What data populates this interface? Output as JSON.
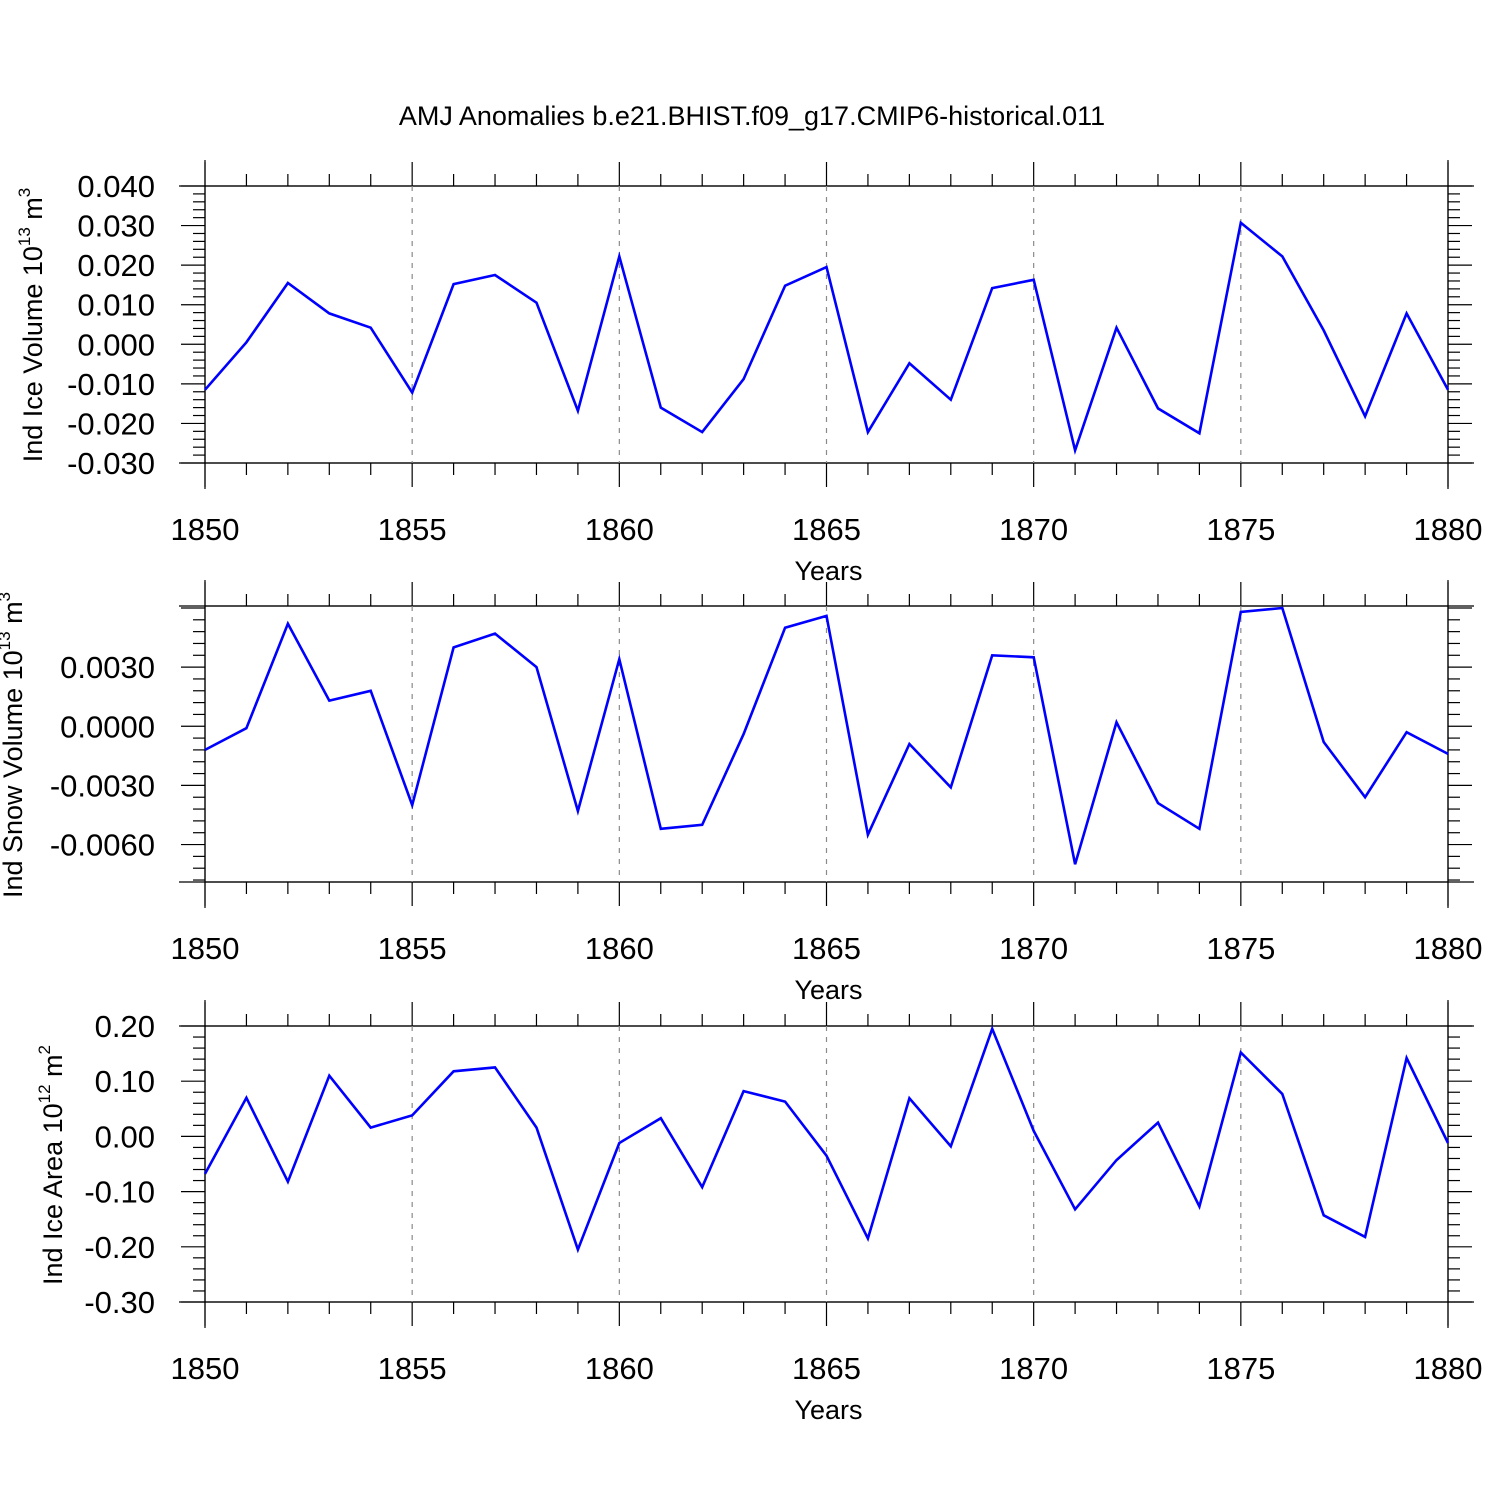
{
  "title": "AMJ Anomalies b.e21.BHIST.f09_g17.CMIP6-historical.011",
  "line_color": "#0000ff",
  "chart_data": [
    {
      "type": "line",
      "ylabel": "Ind Ice Volume 10",
      "ylabel_exp": "13",
      "ylabel_unit": " m",
      "ylabel_unit_exp": "3",
      "xlabel": "Years",
      "xlim": [
        1850,
        1880
      ],
      "ylim": [
        -0.03,
        0.04
      ],
      "xticks": [
        "1850",
        "1855",
        "1860",
        "1865",
        "1870",
        "1875",
        "1880"
      ],
      "yticks": [
        "-0.030",
        "-0.020",
        "-0.010",
        "0.000",
        "0.010",
        "0.020",
        "0.030",
        "0.040"
      ],
      "grid": "dashed vertical at major x ticks",
      "x": [
        1850,
        1851,
        1852,
        1853,
        1854,
        1855,
        1856,
        1857,
        1858,
        1859,
        1860,
        1861,
        1862,
        1863,
        1864,
        1865,
        1866,
        1867,
        1868,
        1869,
        1870,
        1871,
        1872,
        1873,
        1874,
        1875,
        1876,
        1877,
        1878,
        1879,
        1880
      ],
      "values": [
        -0.0115,
        0.0005,
        0.0155,
        0.0078,
        0.0042,
        -0.0122,
        0.0152,
        0.0175,
        0.0105,
        -0.0168,
        0.0222,
        -0.016,
        -0.0222,
        -0.0088,
        0.0148,
        0.0195,
        -0.0222,
        -0.0048,
        -0.014,
        0.0142,
        0.0163,
        -0.0268,
        0.0042,
        -0.0162,
        -0.0225,
        0.0307,
        0.0222,
        0.0035,
        -0.0182,
        0.0078,
        -0.0115
      ]
    },
    {
      "type": "line",
      "ylabel": "Ind Snow Volume 10",
      "ylabel_exp": "13",
      "ylabel_unit": " m",
      "ylabel_unit_exp": "3",
      "xlabel": "Years",
      "xlim": [
        1850,
        1880
      ],
      "ylim": [
        -0.0079,
        0.0061
      ],
      "xticks": [
        "1850",
        "1855",
        "1860",
        "1865",
        "1870",
        "1875",
        "1880"
      ],
      "yticks": [
        "-0.0060",
        "-0.0030",
        "0.0000",
        "0.0030"
      ],
      "grid": "dashed vertical at major x ticks",
      "x": [
        1850,
        1851,
        1852,
        1853,
        1854,
        1855,
        1856,
        1857,
        1858,
        1859,
        1860,
        1861,
        1862,
        1863,
        1864,
        1865,
        1866,
        1867,
        1868,
        1869,
        1870,
        1871,
        1872,
        1873,
        1874,
        1875,
        1876,
        1877,
        1878,
        1879,
        1880
      ],
      "values": [
        -0.0012,
        -0.0001,
        0.0052,
        0.0013,
        0.0018,
        -0.004,
        0.004,
        0.0047,
        0.003,
        -0.0043,
        0.0034,
        -0.0052,
        -0.005,
        -0.0004,
        0.005,
        0.0056,
        -0.0055,
        -0.0009,
        -0.0031,
        0.0036,
        0.0035,
        -0.007,
        0.0002,
        -0.0039,
        -0.0052,
        0.0058,
        0.006,
        -0.0008,
        -0.0036,
        -0.0003,
        -0.0014
      ]
    },
    {
      "type": "line",
      "ylabel": "Ind Ice Area 10",
      "ylabel_exp": "12",
      "ylabel_unit": " m",
      "ylabel_unit_exp": "2",
      "xlabel": "Years",
      "xlim": [
        1850,
        1880
      ],
      "ylim": [
        -0.3,
        0.2
      ],
      "xticks": [
        "1850",
        "1855",
        "1860",
        "1865",
        "1870",
        "1875",
        "1880"
      ],
      "yticks": [
        "-0.30",
        "-0.20",
        "-0.10",
        "0.00",
        "0.10",
        "0.20"
      ],
      "grid": "dashed vertical at major x ticks",
      "x": [
        1850,
        1851,
        1852,
        1853,
        1854,
        1855,
        1856,
        1857,
        1858,
        1859,
        1860,
        1861,
        1862,
        1863,
        1864,
        1865,
        1866,
        1867,
        1868,
        1869,
        1870,
        1871,
        1872,
        1873,
        1874,
        1875,
        1876,
        1877,
        1878,
        1879,
        1880
      ],
      "values": [
        -0.068,
        0.07,
        -0.082,
        0.11,
        0.016,
        0.038,
        0.118,
        0.125,
        0.016,
        -0.205,
        -0.012,
        0.033,
        -0.092,
        0.082,
        0.063,
        -0.035,
        -0.185,
        0.069,
        -0.018,
        0.195,
        0.01,
        -0.132,
        -0.043,
        0.025,
        -0.127,
        0.152,
        0.077,
        -0.143,
        -0.182,
        0.142,
        -0.012
      ]
    }
  ]
}
